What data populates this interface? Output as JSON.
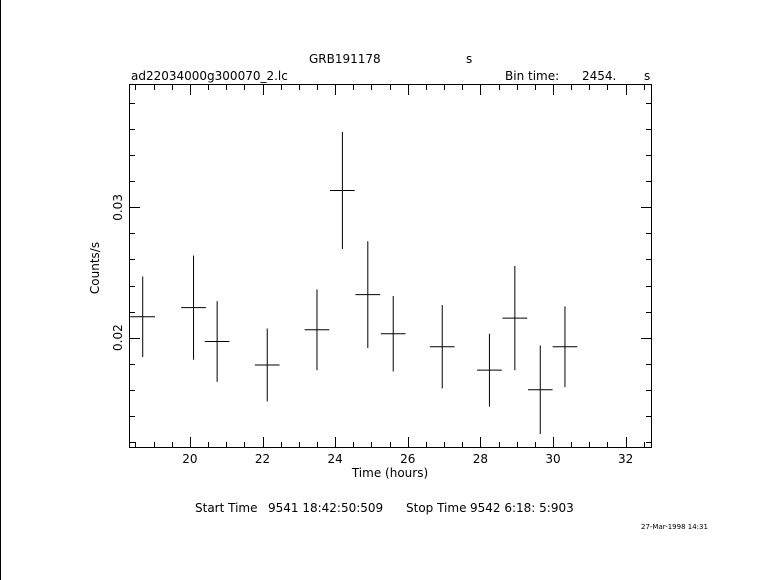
{
  "header": {
    "title": "GRB191178",
    "title_unit": "s",
    "filename": "ad22034000g300070_2.lc",
    "bin_label": "Bin time:",
    "bin_value": "2454.",
    "bin_unit": "s"
  },
  "footer": {
    "start_label": "Start Time",
    "start_value": "9541 18:42:50:509",
    "stop_label": "Stop Time",
    "stop_value": "9542  6:18: 5:903",
    "timestamp": "27-Mar-1998 14:31"
  },
  "chart_data": {
    "type": "scatter",
    "xlabel": "Time (hours)",
    "ylabel": "Counts/s",
    "xlim": [
      18.35,
      32.7
    ],
    "ylim": [
      0.0116,
      0.0394
    ],
    "x_ticks": [
      20,
      22,
      24,
      26,
      28,
      30,
      32
    ],
    "y_ticks": [
      0.02,
      0.03
    ],
    "y_tick_labels": [
      "0.02",
      "0.03"
    ],
    "grid": false,
    "series": [
      {
        "points": [
          {
            "x": 18.7,
            "y": 0.0216,
            "xerr": 0.34,
            "yerr": 0.0031
          },
          {
            "x": 20.1,
            "y": 0.0223,
            "xerr": 0.34,
            "yerr": 0.004
          },
          {
            "x": 20.75,
            "y": 0.0197,
            "xerr": 0.34,
            "yerr": 0.0031
          },
          {
            "x": 22.13,
            "y": 0.0179,
            "xerr": 0.34,
            "yerr": 0.0028
          },
          {
            "x": 23.5,
            "y": 0.0206,
            "xerr": 0.34,
            "yerr": 0.0031
          },
          {
            "x": 24.2,
            "y": 0.0313,
            "xerr": 0.34,
            "yerr": 0.0045
          },
          {
            "x": 24.9,
            "y": 0.0233,
            "xerr": 0.34,
            "yerr": 0.0041
          },
          {
            "x": 25.6,
            "y": 0.0203,
            "xerr": 0.34,
            "yerr": 0.0029
          },
          {
            "x": 26.95,
            "y": 0.0193,
            "xerr": 0.34,
            "yerr": 0.0032
          },
          {
            "x": 28.25,
            "y": 0.0175,
            "xerr": 0.34,
            "yerr": 0.0028
          },
          {
            "x": 28.95,
            "y": 0.0215,
            "xerr": 0.34,
            "yerr": 0.004
          },
          {
            "x": 29.65,
            "y": 0.016,
            "xerr": 0.34,
            "yerr": 0.0034
          },
          {
            "x": 30.33,
            "y": 0.0193,
            "xerr": 0.34,
            "yerr": 0.0031
          }
        ]
      }
    ]
  }
}
